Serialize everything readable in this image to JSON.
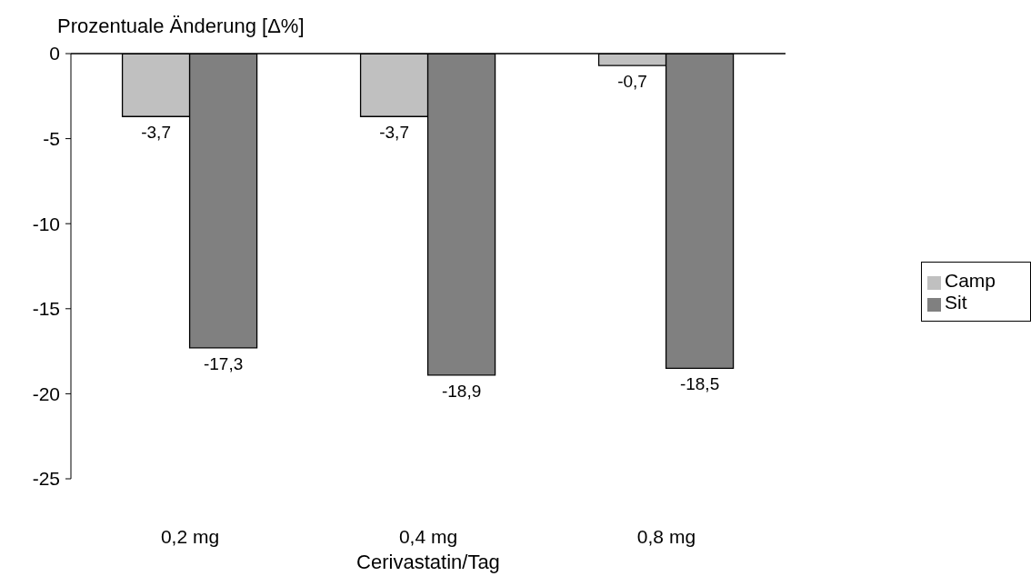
{
  "chart_data": {
    "type": "bar",
    "ylabel": "Prozentuale Änderung [Δ%]",
    "xlabel": "Cerivastatin/Tag",
    "categories": [
      "0,2 mg",
      "0,4 mg",
      "0,8 mg"
    ],
    "series": [
      {
        "name": "Camp",
        "color": "#c0c0c0",
        "values": [
          -3.7,
          -3.7,
          -0.7
        ],
        "value_labels": [
          "-3,7",
          "-3,7",
          "-0,7"
        ]
      },
      {
        "name": "Sit",
        "color": "#808080",
        "values": [
          -17.3,
          -18.9,
          -18.5
        ],
        "value_labels": [
          "-17,3",
          "-18,9",
          "-18,5"
        ]
      }
    ],
    "ylim": [
      -25,
      0
    ],
    "yticks": [
      -25,
      -20,
      -15,
      -10,
      -5,
      0
    ],
    "legend": "right"
  }
}
